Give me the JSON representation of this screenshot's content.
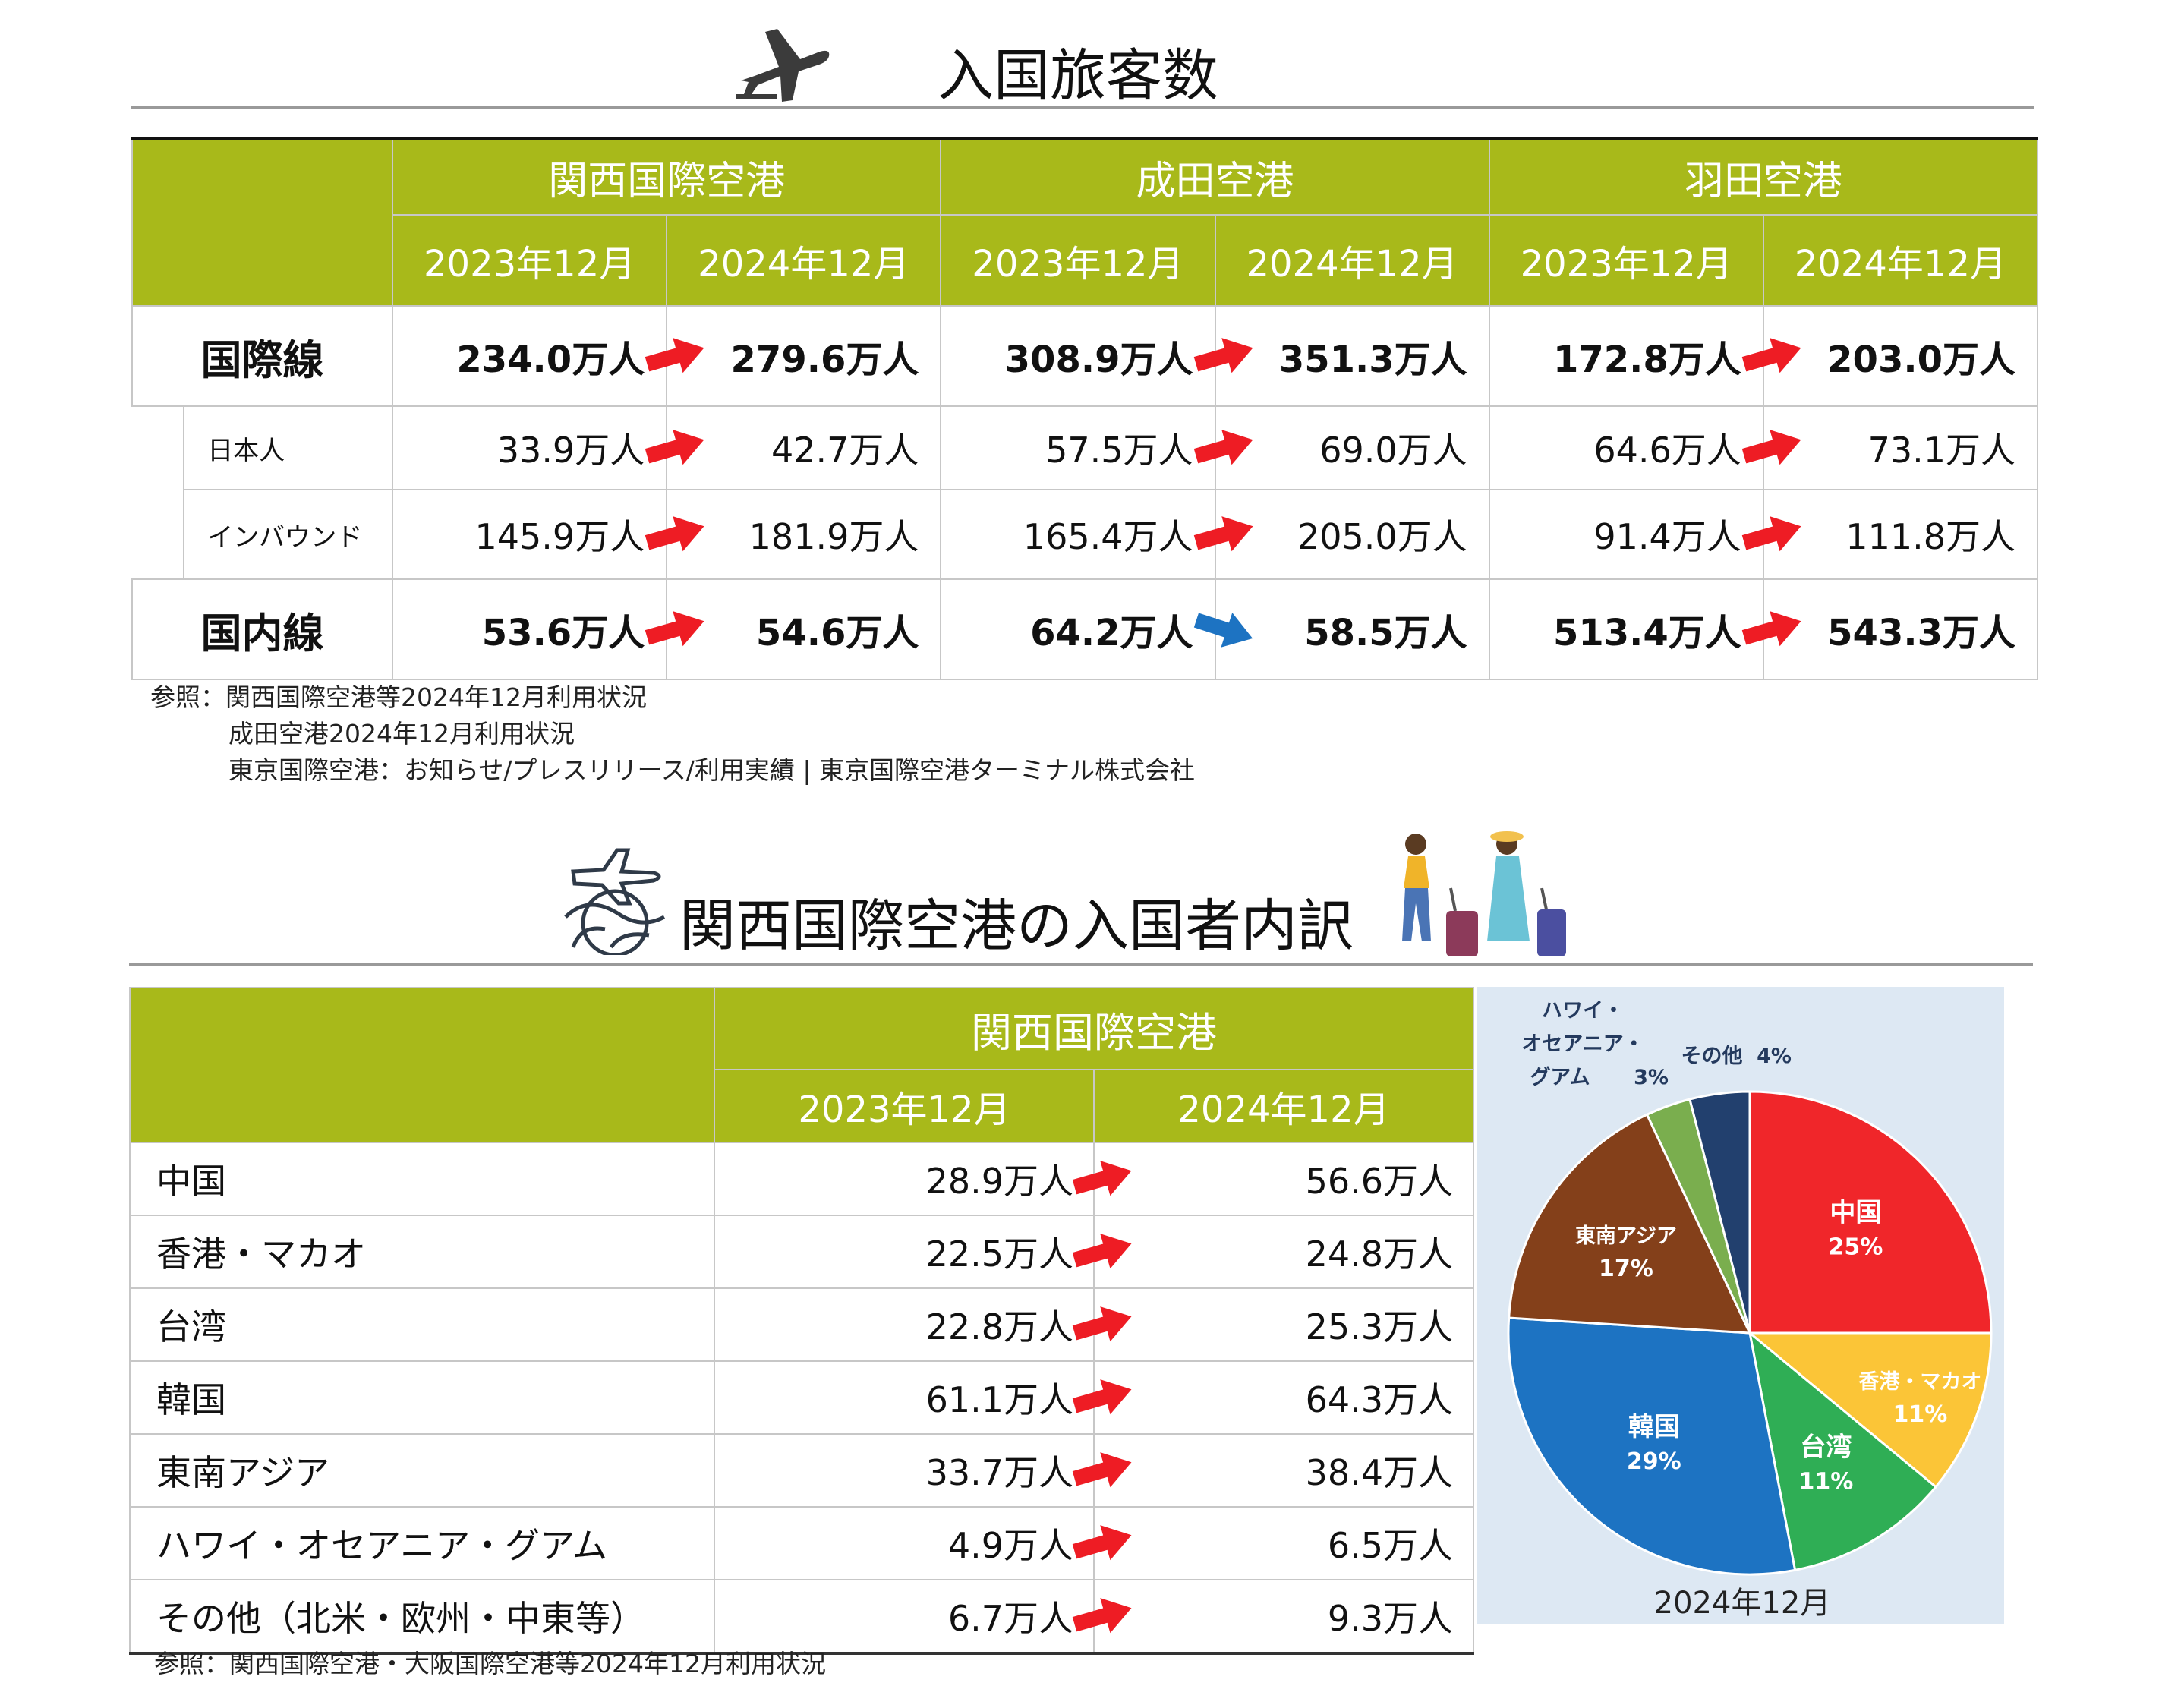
{
  "section1": {
    "title": "入国旅客数",
    "airports": [
      "関西国際空港",
      "成田空港",
      "羽田空港"
    ],
    "periods": [
      "2023年12月",
      "2024年12月"
    ],
    "rows": [
      {
        "label": "国際線",
        "bold": true,
        "values": [
          "234.0万人",
          "279.6万人",
          "308.9万人",
          "351.3万人",
          "172.8万人",
          "203.0万人"
        ],
        "trend": [
          "up",
          "up",
          "up"
        ]
      },
      {
        "label": "日本人",
        "sub": true,
        "values": [
          "33.9万人",
          "42.7万人",
          "57.5万人",
          "69.0万人",
          "64.6万人",
          "73.1万人"
        ],
        "trend": [
          "up",
          "up",
          "up"
        ]
      },
      {
        "label": "インバウンド",
        "sub": true,
        "values": [
          "145.9万人",
          "181.9万人",
          "165.4万人",
          "205.0万人",
          "91.4万人",
          "111.8万人"
        ],
        "trend": [
          "up",
          "up",
          "up"
        ]
      },
      {
        "label": "国内線",
        "bold": true,
        "values": [
          "53.6万人",
          "54.6万人",
          "64.2万人",
          "58.5万人",
          "513.4万人",
          "543.3万人"
        ],
        "trend": [
          "up",
          "down",
          "up"
        ]
      }
    ],
    "source": [
      "参照：関西国際空港等2024年12月利用状況",
      "成田空港2024年12月利用状況",
      "東京国際空港：お知らせ/プレスリリース/利用実績 | 東京国際空港ターミナル株式会社"
    ]
  },
  "section2": {
    "title": "関西国際空港の入国者内訳",
    "airport": "関西国際空港",
    "periods": [
      "2023年12月",
      "2024年12月"
    ],
    "rows": [
      {
        "label": "中国",
        "v2023": "28.9万人",
        "v2024": "56.6万人"
      },
      {
        "label": "香港・マカオ",
        "v2023": "22.5万人",
        "v2024": "24.8万人"
      },
      {
        "label": "台湾",
        "v2023": "22.8万人",
        "v2024": "25.3万人"
      },
      {
        "label": "韓国",
        "v2023": "61.1万人",
        "v2024": "64.3万人"
      },
      {
        "label": "東南アジア",
        "v2023": "33.7万人",
        "v2024": "38.4万人"
      },
      {
        "label": "ハワイ・オセアニア・グアム",
        "v2023": "4.9万人",
        "v2024": "6.5万人"
      },
      {
        "label": "その他（北米・欧州・中東等）",
        "v2023": "6.7万人",
        "v2024": "9.3万人"
      }
    ],
    "source": "参照：関西国際空港・大阪国際空港等2024年12月利用状況"
  },
  "chart_data": {
    "type": "pie",
    "caption": "2024年12月",
    "slices": [
      {
        "label": "中国",
        "value": 25,
        "pct": "25%",
        "color": "#f0262a"
      },
      {
        "label": "香港・マカオ",
        "value": 11,
        "pct": "11%",
        "color": "#fbc537"
      },
      {
        "label": "台湾",
        "value": 11,
        "pct": "11%",
        "color": "#2fae55"
      },
      {
        "label": "韓国",
        "value": 29,
        "pct": "29%",
        "color": "#1d73c2"
      },
      {
        "label": "東南アジア",
        "value": 17,
        "pct": "17%",
        "color": "#84401a"
      },
      {
        "label": "ハワイ・オセアニア・グアム",
        "value": 3,
        "pct": "3%",
        "color": "#7aae4e"
      },
      {
        "label": "その他",
        "value": 4,
        "pct": "4%",
        "color": "#22406e"
      }
    ]
  },
  "colors": {
    "header_green": "#a8b91a",
    "arrow_up": "#ee1c24",
    "arrow_down": "#1d73c2"
  },
  "icons": [
    "airplane-icon",
    "globe-plane-icon",
    "travelers-illustration"
  ]
}
